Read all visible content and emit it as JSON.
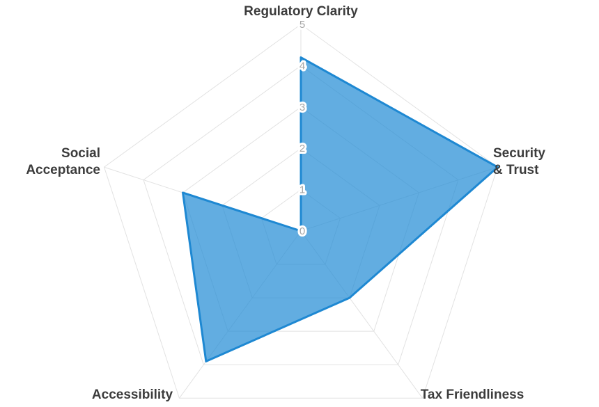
{
  "chart_data": {
    "type": "radar",
    "categories": [
      "Regulatory Clarity",
      "Security & Trust",
      "Tax Friendliness",
      "Accessibility",
      "Social Acceptance"
    ],
    "values": [
      4.2,
      5,
      2,
      3.9,
      3
    ],
    "axis_label_lines": [
      [
        "Regulatory Clarity"
      ],
      [
        "Security",
        "& Trust"
      ],
      [
        "Tax Friendliness"
      ],
      [
        "Accessibility"
      ],
      [
        "Social",
        "Acceptance"
      ]
    ],
    "scale": {
      "min": 0,
      "max": 5,
      "tick_labels": [
        "0",
        "1",
        "2",
        "3",
        "4",
        "5"
      ]
    },
    "path_starts_at_center": true,
    "legend": "none",
    "grid_style": "pentagon rings at each integer level with radial spokes",
    "colors": {
      "fill": "rgba(37,141,214,0.72)",
      "stroke": "#1e88d2",
      "grid": "#e2e2e2",
      "tick_label": "#a5a5a5",
      "axis_label": "#3c3c3c",
      "background": "#ffffff"
    }
  }
}
